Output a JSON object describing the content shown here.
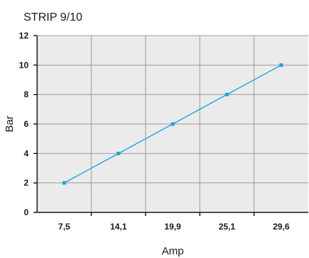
{
  "chart_data": {
    "type": "line",
    "title": "STRIP 9/10",
    "xlabel": "Amp",
    "ylabel": "Bar",
    "categories": [
      "7,5",
      "14,1",
      "19,9",
      "25,1",
      "29,6"
    ],
    "series": [
      {
        "values": [
          2,
          4,
          6,
          8,
          10
        ]
      }
    ],
    "ylim": [
      0,
      12
    ],
    "yticks": [
      "0",
      "2",
      "4",
      "6",
      "8",
      "10",
      "12"
    ],
    "grid": true,
    "colors": {
      "line": "#1aa6e0",
      "plot_background": "#ebebeb",
      "grid": "#9a9a9a",
      "axis": "#1a1a1a"
    }
  }
}
